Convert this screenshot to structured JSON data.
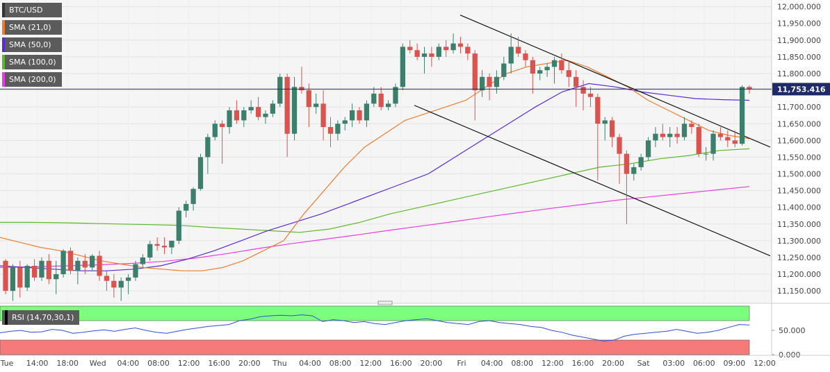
{
  "chart_data": {
    "type": "candlestick",
    "symbol": "BTC/USD",
    "indicators": [
      {
        "label": "BTC/USD",
        "color": "#333333"
      },
      {
        "label": "SMA (21,0)",
        "color": "#f07c2e"
      },
      {
        "label": "SMA (50,0)",
        "color": "#5a2ad6"
      },
      {
        "label": "SMA (100,0)",
        "color": "#5db82a"
      },
      {
        "label": "SMA (200,0)",
        "color": "#e83ce0"
      }
    ],
    "current_price_label": "11,753.416",
    "current_price": 11753.416,
    "y_ticks": [
      "12,000.000",
      "11,950.000",
      "11,900.000",
      "11,850.000",
      "11,800.000",
      "11,750.000",
      "11,700.000",
      "11,650.000",
      "11,600.000",
      "11,550.000",
      "11,500.000",
      "11,450.000",
      "11,400.000",
      "11,350.000",
      "11,300.000",
      "11,250.000",
      "11,200.000",
      "11,150.000"
    ],
    "y_tick_values": [
      12000,
      11950,
      11900,
      11850,
      11800,
      11750,
      11700,
      11650,
      11600,
      11550,
      11500,
      11450,
      11400,
      11350,
      11300,
      11250,
      11200,
      11150
    ],
    "ylim": [
      11115,
      12020
    ],
    "x_ticks": [
      "Tue",
      "14:00",
      "18:00",
      "Wed",
      "04:00",
      "08:00",
      "12:00",
      "16:00",
      "20:00",
      "Thu",
      "04:00",
      "08:00",
      "12:00",
      "16:00",
      "20:00",
      "Fri",
      "04:00",
      "08:00",
      "12:00",
      "16:00",
      "20:00",
      "Sat",
      "03:00",
      "06:00",
      "09:00",
      "12:00"
    ],
    "candles": [
      [
        11240,
        11245,
        11140,
        11150
      ],
      [
        11150,
        11230,
        11120,
        11220
      ],
      [
        11220,
        11240,
        11130,
        11160
      ],
      [
        11160,
        11230,
        11150,
        11225
      ],
      [
        11225,
        11245,
        11180,
        11190
      ],
      [
        11190,
        11250,
        11180,
        11240
      ],
      [
        11240,
        11260,
        11170,
        11185
      ],
      [
        11185,
        11240,
        11140,
        11200
      ],
      [
        11200,
        11275,
        11190,
        11270
      ],
      [
        11270,
        11280,
        11200,
        11210
      ],
      [
        11210,
        11250,
        11170,
        11240
      ],
      [
        11240,
        11260,
        11200,
        11220
      ],
      [
        11220,
        11260,
        11210,
        11255
      ],
      [
        11255,
        11270,
        11180,
        11195
      ],
      [
        11195,
        11210,
        11150,
        11180
      ],
      [
        11180,
        11200,
        11130,
        11160
      ],
      [
        11160,
        11190,
        11120,
        11180
      ],
      [
        11180,
        11200,
        11140,
        11190
      ],
      [
        11190,
        11240,
        11180,
        11230
      ],
      [
        11230,
        11260,
        11220,
        11250
      ],
      [
        11250,
        11300,
        11240,
        11290
      ],
      [
        11290,
        11310,
        11270,
        11285
      ],
      [
        11285,
        11310,
        11260,
        11280
      ],
      [
        11280,
        11300,
        11260,
        11300
      ],
      [
        11300,
        11400,
        11290,
        11390
      ],
      [
        11390,
        11420,
        11370,
        11410
      ],
      [
        11410,
        11460,
        11390,
        11455
      ],
      [
        11455,
        11560,
        11450,
        11550
      ],
      [
        11550,
        11620,
        11500,
        11610
      ],
      [
        11610,
        11660,
        11600,
        11650
      ],
      [
        11650,
        11660,
        11530,
        11640
      ],
      [
        11640,
        11700,
        11620,
        11690
      ],
      [
        11690,
        11720,
        11650,
        11660
      ],
      [
        11660,
        11700,
        11640,
        11690
      ],
      [
        11690,
        11720,
        11680,
        11700
      ],
      [
        11700,
        11730,
        11660,
        11670
      ],
      [
        11670,
        11690,
        11650,
        11680
      ],
      [
        11680,
        11720,
        11670,
        11710
      ],
      [
        11710,
        11800,
        11700,
        11790
      ],
      [
        11790,
        11800,
        11550,
        11620
      ],
      [
        11620,
        11790,
        11600,
        11760
      ],
      [
        11760,
        11820,
        11740,
        11750
      ],
      [
        11750,
        11770,
        11640,
        11700
      ],
      [
        11700,
        11740,
        11680,
        11710
      ],
      [
        11710,
        11750,
        11600,
        11640
      ],
      [
        11640,
        11670,
        11580,
        11620
      ],
      [
        11620,
        11660,
        11600,
        11650
      ],
      [
        11650,
        11670,
        11630,
        11660
      ],
      [
        11660,
        11710,
        11640,
        11690
      ],
      [
        11690,
        11700,
        11650,
        11660
      ],
      [
        11660,
        11720,
        11640,
        11710
      ],
      [
        11710,
        11760,
        11700,
        11740
      ],
      [
        11740,
        11760,
        11690,
        11700
      ],
      [
        11700,
        11720,
        11690,
        11710
      ],
      [
        11710,
        11770,
        11700,
        11760
      ],
      [
        11760,
        11890,
        11750,
        11880
      ],
      [
        11880,
        11900,
        11860,
        11870
      ],
      [
        11870,
        11890,
        11840,
        11850
      ],
      [
        11850,
        11880,
        11800,
        11860
      ],
      [
        11860,
        11880,
        11820,
        11850
      ],
      [
        11850,
        11890,
        11840,
        11880
      ],
      [
        11880,
        11900,
        11850,
        11870
      ],
      [
        11870,
        11920,
        11860,
        11890
      ],
      [
        11890,
        11910,
        11860,
        11880
      ],
      [
        11880,
        11890,
        11840,
        11860
      ],
      [
        11860,
        11870,
        11660,
        11750
      ],
      [
        11750,
        11810,
        11730,
        11790
      ],
      [
        11790,
        11800,
        11720,
        11760
      ],
      [
        11760,
        11810,
        11740,
        11790
      ],
      [
        11790,
        11850,
        11780,
        11830
      ],
      [
        11830,
        11920,
        11800,
        11880
      ],
      [
        11880,
        11910,
        11850,
        11860
      ],
      [
        11860,
        11870,
        11820,
        11840
      ],
      [
        11840,
        11850,
        11740,
        11800
      ],
      [
        11800,
        11820,
        11780,
        11810
      ],
      [
        11810,
        11830,
        11790,
        11820
      ],
      [
        11820,
        11850,
        11770,
        11840
      ],
      [
        11840,
        11860,
        11800,
        11810
      ],
      [
        11810,
        11840,
        11760,
        11790
      ],
      [
        11790,
        11810,
        11700,
        11760
      ],
      [
        11760,
        11780,
        11690,
        11740
      ],
      [
        11740,
        11760,
        11700,
        11730
      ],
      [
        11730,
        11740,
        11480,
        11650
      ],
      [
        11650,
        11670,
        11600,
        11660
      ],
      [
        11660,
        11670,
        11580,
        11610
      ],
      [
        11610,
        11620,
        11470,
        11560
      ],
      [
        11560,
        11570,
        11350,
        11500
      ],
      [
        11500,
        11530,
        11480,
        11520
      ],
      [
        11520,
        11560,
        11510,
        11550
      ],
      [
        11550,
        11610,
        11540,
        11600
      ],
      [
        11600,
        11640,
        11580,
        11620
      ],
      [
        11620,
        11650,
        11600,
        11610
      ],
      [
        11610,
        11640,
        11580,
        11620
      ],
      [
        11620,
        11640,
        11590,
        11610
      ],
      [
        11610,
        11670,
        11600,
        11650
      ],
      [
        11650,
        11660,
        11620,
        11640
      ],
      [
        11640,
        11650,
        11550,
        11560
      ],
      [
        11560,
        11580,
        11540,
        11560
      ],
      [
        11560,
        11630,
        11540,
        11620
      ],
      [
        11620,
        11640,
        11600,
        11610
      ],
      [
        11610,
        11630,
        11580,
        11600
      ],
      [
        11600,
        11630,
        11580,
        11590
      ],
      [
        11590,
        11765,
        11585,
        11760
      ],
      [
        11760,
        11765,
        11740,
        11753
      ]
    ],
    "sma21": [
      11310,
      11295,
      11280,
      11270,
      11255,
      11240,
      11230,
      11220,
      11215,
      11210,
      11210,
      11220,
      11240,
      11270,
      11300,
      11380,
      11450,
      11520,
      11580,
      11620,
      11660,
      11680,
      11700,
      11720,
      11760,
      11800,
      11820,
      11830,
      11840,
      11820,
      11790,
      11760,
      11720,
      11690,
      11660,
      11630,
      11615,
      11605
    ],
    "sma50": [
      11225,
      11220,
      11215,
      11210,
      11210,
      11215,
      11225,
      11245,
      11270,
      11300,
      11330,
      11355,
      11380,
      11410,
      11440,
      11470,
      11500,
      11550,
      11600,
      11650,
      11700,
      11745,
      11770,
      11760,
      11745,
      11735,
      11725,
      11722,
      11720
    ],
    "sma100": [
      11355,
      11355,
      11354,
      11352,
      11350,
      11348,
      11346,
      11340,
      11335,
      11330,
      11325,
      11335,
      11355,
      11380,
      11400,
      11420,
      11440,
      11460,
      11480,
      11500,
      11520,
      11530,
      11545,
      11555,
      11570,
      11575
    ],
    "sma200": [
      11220,
      11222,
      11225,
      11228,
      11232,
      11238,
      11248,
      11262,
      11278,
      11292,
      11305,
      11318,
      11332,
      11345,
      11358,
      11372,
      11385,
      11398,
      11410,
      11422,
      11432,
      11442,
      11452,
      11462
    ],
    "rsi": {
      "label": "RSI (14,70,30,1)",
      "y_ticks": [
        "50.000",
        "0.000"
      ],
      "y_tick_values": [
        50,
        0
      ],
      "overbought": 70,
      "oversold": 30,
      "values": [
        45,
        48,
        50,
        46,
        47,
        52,
        50,
        44,
        46,
        49,
        51,
        48,
        52,
        55,
        50,
        46,
        44,
        48,
        52,
        55,
        58,
        60,
        62,
        70,
        73,
        78,
        80,
        81,
        80,
        82,
        80,
        68,
        72,
        70,
        66,
        68,
        64,
        62,
        66,
        70,
        72,
        74,
        70,
        66,
        64,
        62,
        68,
        70,
        66,
        64,
        62,
        58,
        56,
        50,
        46,
        40,
        36,
        32,
        28,
        30,
        38,
        42,
        44,
        46,
        48,
        52,
        48,
        44,
        46,
        50,
        56,
        62,
        61
      ]
    }
  }
}
